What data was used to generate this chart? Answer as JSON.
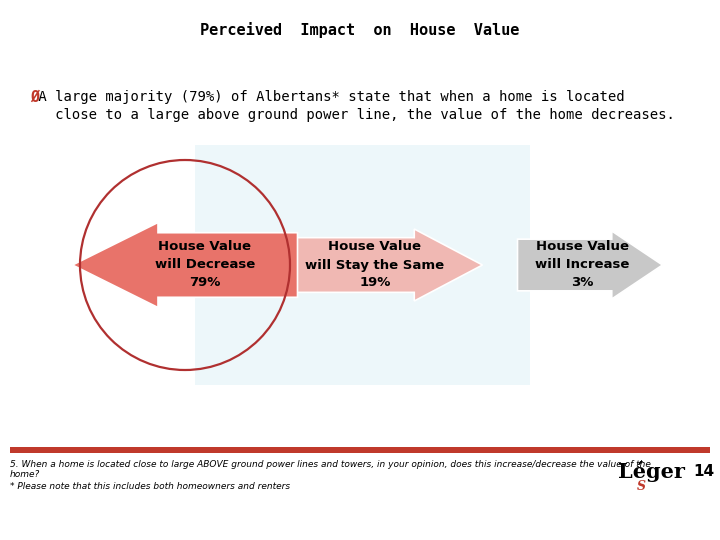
{
  "title": "Perceived  Impact  on  House  Value",
  "bullet_symbol": "Ø",
  "bullet_text_line1": " A large majority (79%) of Albertans* state that when a home is located",
  "bullet_text_line2": "   close to a large above ground power line, the value of the home decreases.",
  "arrow1_label": "House Value\nwill Decrease\n79%",
  "arrow2_label": "House Value\nwill Stay the Same\n19%",
  "arrow3_label": "House Value\nwill Increase\n3%",
  "arrow1_color": "#E8736A",
  "arrow2_color": "#F0B8B3",
  "arrow3_color": "#C8C8C8",
  "circle_color": "#B03030",
  "footer_bar_color": "#C0392B",
  "footer_text1": "5. When a home is located close to large ABOVE ground power lines and towers, in your opinion, does this increase/decrease the value of the",
  "footer_text2": "home?",
  "footer_text3": "* Please note that this includes both homeowners and renters",
  "page_number": "14",
  "bg_color": "#FFFFFF",
  "bg_rect_color": "#D8EEF5",
  "title_fontsize": 11,
  "bullet_fontsize": 10,
  "arrow_fontsize": 9.5,
  "footer_fontsize": 6.5
}
